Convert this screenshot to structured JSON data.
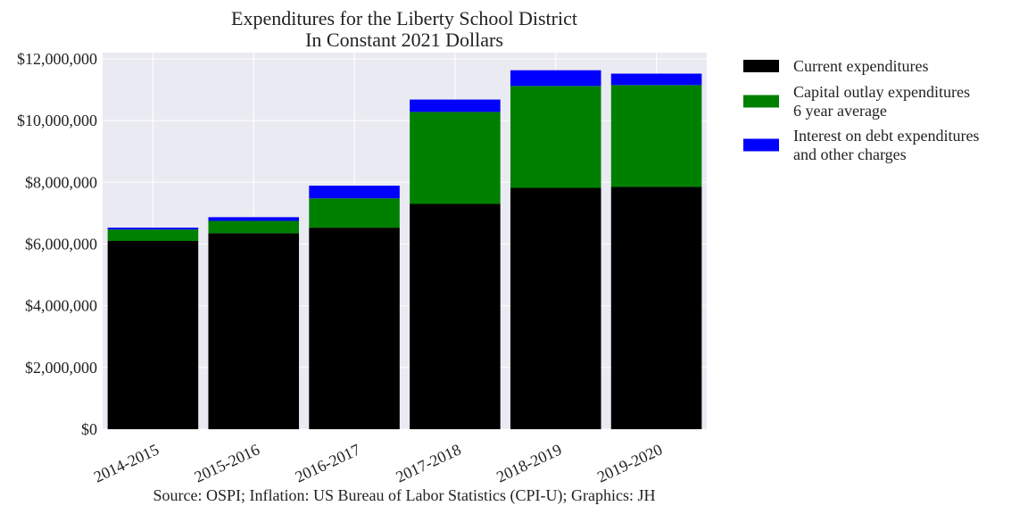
{
  "chart_data": {
    "type": "bar",
    "stacked": true,
    "title": [
      "Expenditures for the Liberty School District",
      "In Constant 2021 Dollars"
    ],
    "categories": [
      "2014-2015",
      "2015-2016",
      "2016-2017",
      "2017-2018",
      "2018-2019",
      "2019-2020"
    ],
    "series": [
      {
        "name": [
          "Current expenditures"
        ],
        "color": "#000000",
        "values": [
          6100000,
          6350000,
          6530000,
          7300000,
          7820000,
          7850000
        ]
      },
      {
        "name": [
          "Capital outlay expenditures",
          "6 year average"
        ],
        "color": "#008000",
        "values": [
          370000,
          400000,
          950000,
          2980000,
          3300000,
          3300000
        ]
      },
      {
        "name": [
          "Interest on debt expenditures",
          "and other charges"
        ],
        "color": "#0000ff",
        "values": [
          60000,
          120000,
          410000,
          400000,
          510000,
          370000
        ]
      }
    ],
    "ylim": [
      0,
      12200000
    ],
    "yticks": [
      0,
      2000000,
      4000000,
      6000000,
      8000000,
      10000000,
      12000000
    ],
    "ytick_labels": [
      "$0",
      "$2,000,000",
      "$4,000,000",
      "$6,000,000",
      "$8,000,000",
      "$10,000,000",
      "$12,000,000"
    ],
    "grid": true,
    "legend_position": "outside-right",
    "source_note": "Source: OSPI; Inflation: US Bureau of Labor Statistics (CPI-U); Graphics: JH"
  }
}
